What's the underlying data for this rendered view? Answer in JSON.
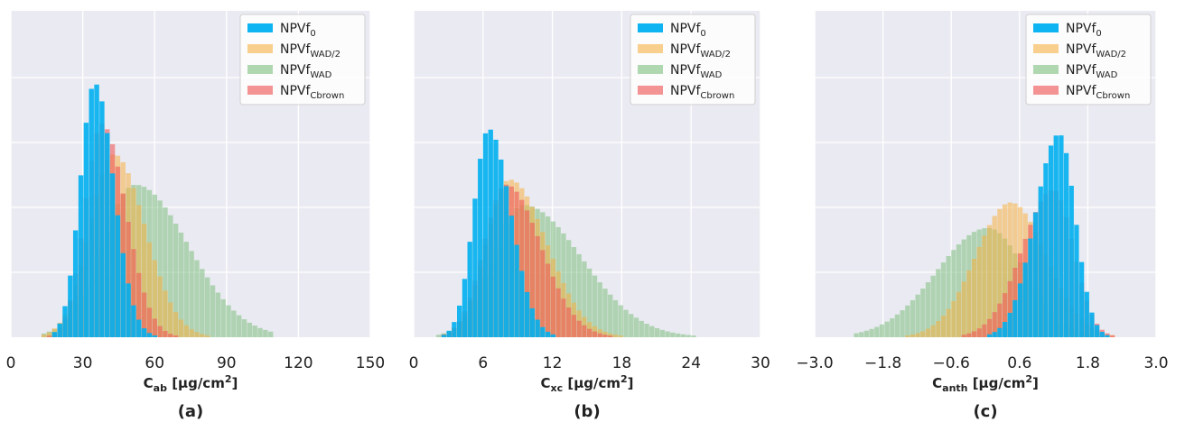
{
  "colors": {
    "background": "#eaeaf2",
    "grid": "#ffffff",
    "legend_bg": "#ffffff",
    "NPVf0": "#00b0f0",
    "NPVfWAD2": "#f5b041",
    "NPVfWAD": "#7dc07d",
    "NPVfCbrown": "#f05a5a"
  },
  "legend": [
    {
      "key": "NPVf0",
      "base": "NPVf",
      "sub": "0"
    },
    {
      "key": "NPVfWAD2",
      "base": "NPVf",
      "sub": "WAD/2"
    },
    {
      "key": "NPVfWAD",
      "base": "NPVf",
      "sub": "WAD"
    },
    {
      "key": "NPVfCbrown",
      "base": "NPVf",
      "sub": "Cbrown"
    }
  ],
  "chart_data": [
    {
      "type": "histogram",
      "panel": "(a)",
      "xlabel": {
        "main": "C",
        "sub": "ab",
        "units": " [μg/cm",
        "sup": "2",
        "close": "]"
      },
      "xlim": [
        0,
        150
      ],
      "xticks": [
        "0",
        "30",
        "60",
        "90",
        "120",
        "150"
      ],
      "xtick_values": [
        0,
        30,
        60,
        90,
        120,
        150
      ],
      "grid": true,
      "legend_position": "top-right",
      "bins": {
        "start": 4,
        "width": 2.2,
        "count": 48
      },
      "series": [
        {
          "name": "NPVf0",
          "peak_center": 35,
          "sigma_left": 6,
          "sigma_right": 8,
          "peak_height": 1.0,
          "range": [
            18,
            68
          ]
        },
        {
          "name": "NPVfWAD2",
          "peak_center": 43,
          "sigma_left": 10,
          "sigma_right": 13,
          "peak_height": 0.72,
          "range": [
            13,
            95
          ]
        },
        {
          "name": "NPVfWAD",
          "peak_center": 52,
          "sigma_left": 14,
          "sigma_right": 22,
          "peak_height": 0.6,
          "range": [
            12,
            110
          ]
        },
        {
          "name": "NPVfCbrown",
          "peak_center": 38,
          "sigma_left": 7,
          "sigma_right": 10,
          "peak_height": 0.84,
          "range": [
            14,
            86
          ]
        }
      ]
    },
    {
      "type": "histogram",
      "panel": "(b)",
      "xlabel": {
        "main": "C",
        "sub": "xc",
        "units": " [μg/cm",
        "sup": "2",
        "close": "]"
      },
      "xlim": [
        0,
        30
      ],
      "xticks": [
        "0",
        "6",
        "12",
        "18",
        "24",
        "30"
      ],
      "xtick_values": [
        0,
        6,
        12,
        18,
        24,
        30
      ],
      "grid": true,
      "legend_position": "top-right",
      "bins": {
        "start": 1.5,
        "width": 0.45,
        "count": 59
      },
      "series": [
        {
          "name": "NPVf0",
          "peak_center": 6.5,
          "sigma_left": 1.3,
          "sigma_right": 1.9,
          "peak_height": 0.82,
          "range": [
            2.5,
            14
          ]
        },
        {
          "name": "NPVfWAD2",
          "peak_center": 8.3,
          "sigma_left": 2.0,
          "sigma_right": 3.2,
          "peak_height": 0.62,
          "range": [
            2.2,
            22
          ]
        },
        {
          "name": "NPVfWAD",
          "peak_center": 9.5,
          "sigma_left": 2.6,
          "sigma_right": 5.0,
          "peak_height": 0.52,
          "range": [
            2.0,
            28
          ]
        },
        {
          "name": "NPVfCbrown",
          "peak_center": 8.0,
          "sigma_left": 1.9,
          "sigma_right": 3.0,
          "peak_height": 0.6,
          "range": [
            2.2,
            22
          ]
        }
      ]
    },
    {
      "type": "histogram",
      "panel": "(c)",
      "xlabel": {
        "main": "C",
        "sub": "anth",
        "units": " [μg/cm",
        "sup": "2",
        "close": "]"
      },
      "xlim": [
        -3.0,
        3.0
      ],
      "xticks": [
        "−3.0",
        "−1.8",
        "−0.6",
        "0.6",
        "1.8",
        "3.0"
      ],
      "xtick_values": [
        -3.0,
        -1.8,
        -0.6,
        0.6,
        1.8,
        3.0
      ],
      "grid": true,
      "legend_position": "top-right",
      "bins": {
        "start": -2.4,
        "width": 0.09,
        "count": 56
      },
      "series": [
        {
          "name": "NPVf0",
          "peak_center": 1.3,
          "sigma_left": 0.42,
          "sigma_right": 0.28,
          "peak_height": 0.8,
          "range": [
            -0.3,
            2.2
          ]
        },
        {
          "name": "NPVfWAD2",
          "peak_center": 0.45,
          "sigma_left": 0.62,
          "sigma_right": 0.62,
          "peak_height": 0.53,
          "range": [
            -1.6,
            2.3
          ]
        },
        {
          "name": "NPVfWAD",
          "peak_center": 0.05,
          "sigma_left": 0.9,
          "sigma_right": 0.65,
          "peak_height": 0.43,
          "range": [
            -2.3,
            2.0
          ]
        },
        {
          "name": "NPVfCbrown",
          "peak_center": 1.2,
          "sigma_left": 0.55,
          "sigma_right": 0.35,
          "peak_height": 0.58,
          "range": [
            -1.0,
            2.5
          ]
        }
      ]
    }
  ]
}
